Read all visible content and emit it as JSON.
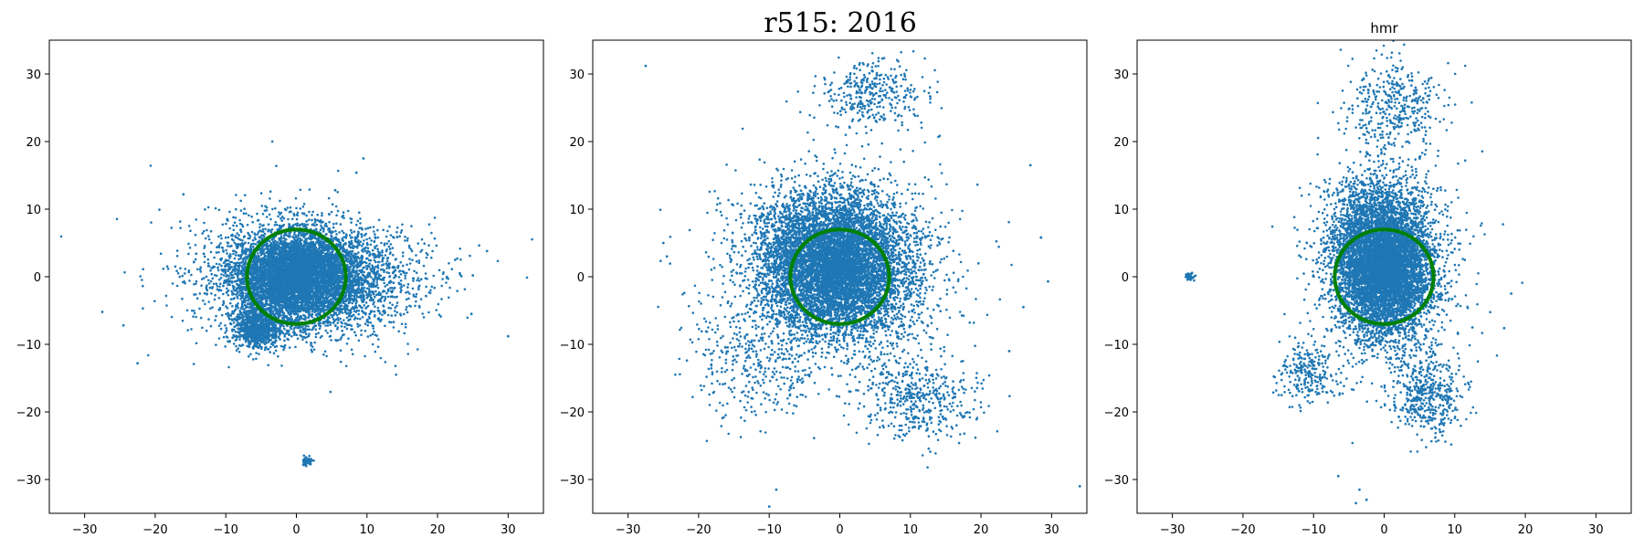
{
  "figure": {
    "suptitle": "r515: 2016",
    "point_color": "#1f77b4",
    "circle_color": "#008000"
  },
  "chart_data": [
    {
      "type": "scatter",
      "title": "",
      "xlim": [
        -35,
        35
      ],
      "ylim": [
        -35,
        35
      ],
      "xticks": [
        -30,
        -20,
        -10,
        0,
        10,
        20,
        30
      ],
      "yticks": [
        -30,
        -20,
        -10,
        0,
        10,
        20,
        30
      ],
      "circle": {
        "cx": 0,
        "cy": 0,
        "r": 7
      },
      "clusters": [
        {
          "cx": 0,
          "cy": 0,
          "sx": 4.5,
          "sy": 3.2,
          "n": 5000
        },
        {
          "cx": 3,
          "cy": 0,
          "sx": 7,
          "sy": 4,
          "n": 2200
        },
        {
          "cx": -5.5,
          "cy": -7.5,
          "sx": 1.8,
          "sy": 1.6,
          "n": 900
        },
        {
          "cx": 0,
          "cy": 0,
          "sx": 10,
          "sy": 5.5,
          "n": 500
        },
        {
          "cx": 1.5,
          "cy": -27.3,
          "sx": 0.35,
          "sy": 0.3,
          "n": 60
        }
      ],
      "outliers": [
        {
          "x": -27.5,
          "y": -5.2
        },
        {
          "x": -24.5,
          "y": -7.2
        },
        {
          "x": -22.5,
          "y": -12.8
        },
        {
          "x": 30,
          "y": -8.8
        },
        {
          "x": 27,
          "y": 3.8
        },
        {
          "x": 25,
          "y": 0.2
        },
        {
          "x": 24.8,
          "y": -5.5
        },
        {
          "x": 9.5,
          "y": 17.5
        },
        {
          "x": 8.5,
          "y": 15.4
        },
        {
          "x": -16,
          "y": 12.2
        },
        {
          "x": 5.5,
          "y": 12.8
        },
        {
          "x": 22.5,
          "y": 2.5
        }
      ]
    },
    {
      "type": "scatter",
      "title": "",
      "xlim": [
        -35,
        35
      ],
      "ylim": [
        -35,
        35
      ],
      "xticks": [
        -30,
        -20,
        -10,
        0,
        10,
        20,
        30
      ],
      "yticks": [
        -30,
        -20,
        -10,
        0,
        10,
        20,
        30
      ],
      "circle": {
        "cx": 0,
        "cy": 0,
        "r": 7
      },
      "clusters": [
        {
          "cx": 0,
          "cy": 1,
          "sx": 5,
          "sy": 5,
          "n": 5500
        },
        {
          "cx": -3,
          "cy": 4,
          "sx": 5.5,
          "sy": 5,
          "n": 2000
        },
        {
          "cx": 0,
          "cy": 0,
          "sx": 9,
          "sy": 8,
          "n": 900
        },
        {
          "cx": 5,
          "cy": 27,
          "sx": 4,
          "sy": 2.5,
          "n": 350
        },
        {
          "cx": 11,
          "cy": -18,
          "sx": 4,
          "sy": 3,
          "n": 450
        },
        {
          "cx": -12,
          "cy": -12,
          "sx": 4.5,
          "sy": 4.5,
          "n": 350
        }
      ],
      "outliers": [
        {
          "x": -27.5,
          "y": 31.2
        },
        {
          "x": 34,
          "y": -31
        },
        {
          "x": 29.5,
          "y": -0.7
        },
        {
          "x": 26,
          "y": -4.5
        },
        {
          "x": 27,
          "y": 16.5
        },
        {
          "x": -24.5,
          "y": 3
        },
        {
          "x": -25,
          "y": 5
        },
        {
          "x": -10,
          "y": -34
        },
        {
          "x": -9,
          "y": -31.5
        },
        {
          "x": 24,
          "y": -11
        },
        {
          "x": 28.5,
          "y": 5.8
        }
      ]
    },
    {
      "type": "scatter",
      "title": "hmr",
      "xlim": [
        -35,
        35
      ],
      "ylim": [
        -35,
        35
      ],
      "xticks": [
        -30,
        -20,
        -10,
        0,
        10,
        20,
        30
      ],
      "yticks": [
        -30,
        -20,
        -10,
        0,
        10,
        20,
        30
      ],
      "circle": {
        "cx": 0,
        "cy": 0,
        "r": 7
      },
      "clusters": [
        {
          "cx": 0,
          "cy": 1,
          "sx": 3.2,
          "sy": 5,
          "n": 5500
        },
        {
          "cx": -1,
          "cy": 6,
          "sx": 4,
          "sy": 5,
          "n": 1500
        },
        {
          "cx": 1,
          "cy": 0,
          "sx": 5.5,
          "sy": 8,
          "n": 700
        },
        {
          "cx": 1.5,
          "cy": 25,
          "sx": 3.5,
          "sy": 3.5,
          "n": 400
        },
        {
          "cx": 6,
          "cy": -17.5,
          "sx": 2.5,
          "sy": 3,
          "n": 450
        },
        {
          "cx": -10.5,
          "cy": -14,
          "sx": 2.2,
          "sy": 2.5,
          "n": 250
        },
        {
          "cx": -27.5,
          "cy": 0,
          "sx": 0.3,
          "sy": 0.3,
          "n": 50
        }
      ],
      "outliers": [
        {
          "x": 18,
          "y": -2.5
        },
        {
          "x": 12.5,
          "y": -7.5
        },
        {
          "x": -6.5,
          "y": -29.5
        },
        {
          "x": -3.5,
          "y": -31.5
        },
        {
          "x": -2.5,
          "y": -33
        },
        {
          "x": 17,
          "y": -7.6
        },
        {
          "x": -4,
          "y": -33.5
        }
      ]
    }
  ]
}
